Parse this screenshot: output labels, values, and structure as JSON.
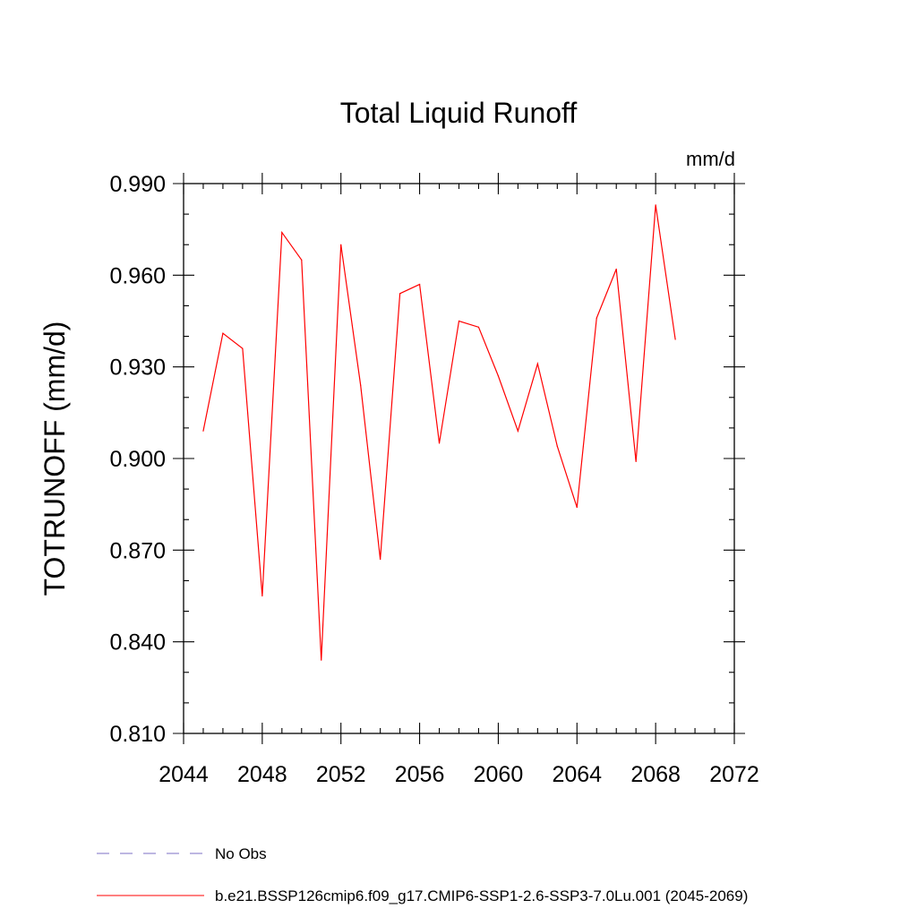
{
  "chart_data": {
    "type": "line",
    "title": "Total Liquid Runoff",
    "units_label": "mm/d",
    "ylabel": "TOTRUNOFF  (mm/d)",
    "xlabel": "",
    "xlim": [
      2044,
      2072
    ],
    "ylim": [
      0.81,
      0.99
    ],
    "x_ticks": [
      2044,
      2048,
      2052,
      2056,
      2060,
      2064,
      2068,
      2072
    ],
    "x_tick_labels": [
      "2044",
      "2048",
      "2052",
      "2056",
      "2060",
      "2064",
      "2068",
      "2072"
    ],
    "y_ticks": [
      0.81,
      0.84,
      0.87,
      0.9,
      0.93,
      0.96,
      0.99
    ],
    "y_tick_labels": [
      "0.810",
      "0.840",
      "0.870",
      "0.900",
      "0.930",
      "0.960",
      "0.990"
    ],
    "grid": false,
    "legend_position": "bottom",
    "series": [
      {
        "name": "b.e21.BSSP126cmip6.f09_g17.CMIP6-SSP1-2.6-SSP3-7.0Lu.001 (2045-2069)",
        "color": "#ff0000",
        "x": [
          2045,
          2046,
          2047,
          2048,
          2049,
          2050,
          2051,
          2052,
          2053,
          2054,
          2055,
          2056,
          2057,
          2058,
          2059,
          2060,
          2061,
          2062,
          2063,
          2064,
          2065,
          2066,
          2067,
          2068,
          2069
        ],
        "values": [
          0.909,
          0.941,
          0.936,
          0.855,
          0.974,
          0.965,
          0.834,
          0.97,
          0.924,
          0.867,
          0.954,
          0.957,
          0.905,
          0.945,
          0.943,
          0.927,
          0.909,
          0.931,
          0.904,
          0.884,
          0.946,
          0.962,
          0.899,
          0.983,
          0.939
        ]
      }
    ],
    "legend": [
      {
        "label": "No Obs",
        "color": "#7b6fc4",
        "dash": true
      },
      {
        "label": "b.e21.BSSP126cmip6.f09_g17.CMIP6-SSP1-2.6-SSP3-7.0Lu.001 (2045-2069)",
        "color": "#ff0000",
        "dash": false
      }
    ]
  }
}
